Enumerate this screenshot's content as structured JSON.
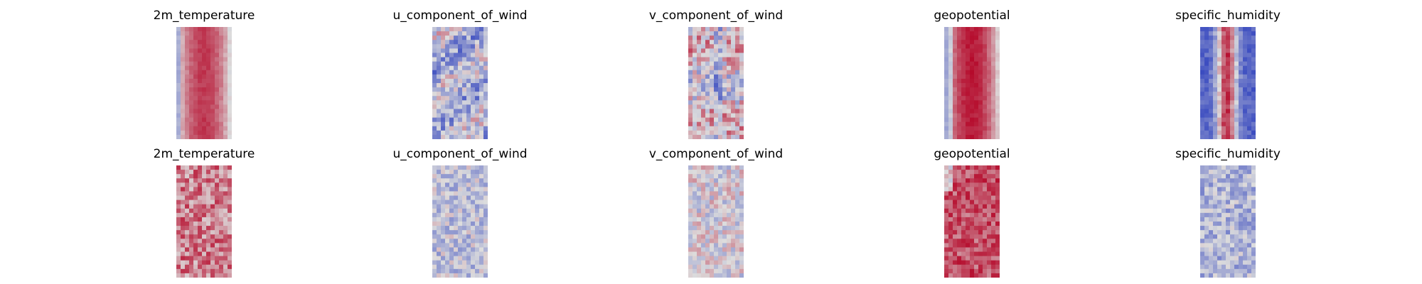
{
  "figure": {
    "colormap": "coolwarm",
    "colors": {
      "low": "#3b4cc0",
      "mid": "#dddddd",
      "high": "#b40426",
      "background": "#ffffff"
    },
    "rows": [
      {
        "panels": [
          {
            "title": "2m_temperature",
            "pattern": "warm-center"
          },
          {
            "title": "u_component_of_wind",
            "pattern": "wind-u"
          },
          {
            "title": "v_component_of_wind",
            "pattern": "wind-v"
          },
          {
            "title": "geopotential",
            "pattern": "warm-center-strong"
          },
          {
            "title": "specific_humidity",
            "pattern": "humid-streak"
          }
        ]
      },
      {
        "panels": [
          {
            "title": "2m_temperature",
            "pattern": "noisy-warm"
          },
          {
            "title": "u_component_of_wind",
            "pattern": "noisy-neutral-cool"
          },
          {
            "title": "v_component_of_wind",
            "pattern": "noisy-neutral"
          },
          {
            "title": "geopotential",
            "pattern": "noisy-warm-strong"
          },
          {
            "title": "specific_humidity",
            "pattern": "noisy-cool"
          }
        ]
      }
    ]
  }
}
